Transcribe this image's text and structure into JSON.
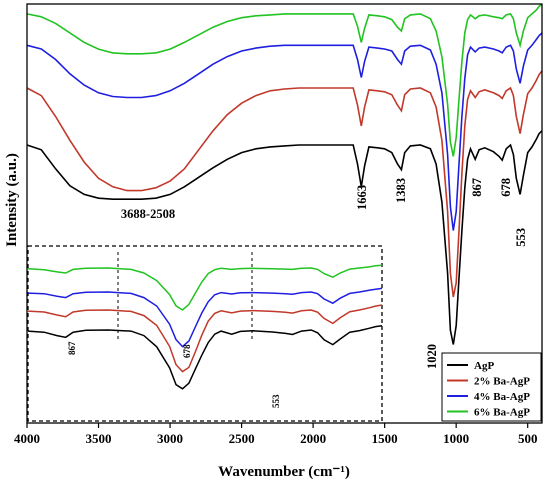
{
  "chart_data": {
    "type": "line",
    "title": "",
    "xlabel": "Wavenumber (cm⁻¹)",
    "ylabel": "Intensity (a.u.)",
    "xlim": [
      4000,
      400
    ],
    "x_reversed": true,
    "y_ticks_shown": false,
    "xticks": [
      4000,
      3500,
      3000,
      2500,
      2000,
      1500,
      1000,
      500
    ],
    "legend": {
      "position": "bottom-right"
    },
    "series": [
      {
        "name": "AgP",
        "color": "#000000",
        "offset": 0.0,
        "points": [
          [
            4000,
            0.0
          ],
          [
            3900,
            -0.05
          ],
          [
            3800,
            -0.25
          ],
          [
            3700,
            -0.43
          ],
          [
            3600,
            -0.52
          ],
          [
            3500,
            -0.56
          ],
          [
            3400,
            -0.57
          ],
          [
            3300,
            -0.57
          ],
          [
            3200,
            -0.57
          ],
          [
            3100,
            -0.56
          ],
          [
            3000,
            -0.52
          ],
          [
            2900,
            -0.44
          ],
          [
            2800,
            -0.34
          ],
          [
            2700,
            -0.24
          ],
          [
            2600,
            -0.15
          ],
          [
            2500,
            -0.08
          ],
          [
            2400,
            -0.04
          ],
          [
            2300,
            -0.02
          ],
          [
            2200,
            -0.01
          ],
          [
            2100,
            0.0
          ],
          [
            2000,
            0.0
          ],
          [
            1900,
            0.0
          ],
          [
            1800,
            0.0
          ],
          [
            1720,
            0.0
          ],
          [
            1690,
            -0.2
          ],
          [
            1663,
            -0.44
          ],
          [
            1640,
            -0.22
          ],
          [
            1610,
            -0.02
          ],
          [
            1550,
            -0.03
          ],
          [
            1500,
            -0.04
          ],
          [
            1450,
            -0.08
          ],
          [
            1410,
            -0.2
          ],
          [
            1383,
            -0.26
          ],
          [
            1360,
            -0.08
          ],
          [
            1320,
            -0.01
          ],
          [
            1250,
            0.0
          ],
          [
            1180,
            -0.04
          ],
          [
            1140,
            -0.2
          ],
          [
            1100,
            -0.6
          ],
          [
            1060,
            -1.35
          ],
          [
            1040,
            -1.95
          ],
          [
            1020,
            -2.1
          ],
          [
            1000,
            -1.9
          ],
          [
            980,
            -1.4
          ],
          [
            960,
            -0.9
          ],
          [
            940,
            -0.45
          ],
          [
            920,
            -0.15
          ],
          [
            900,
            -0.04
          ],
          [
            867,
            -0.15
          ],
          [
            840,
            -0.05
          ],
          [
            800,
            -0.03
          ],
          [
            740,
            -0.07
          ],
          [
            700,
            -0.12
          ],
          [
            678,
            -0.16
          ],
          [
            650,
            -0.04
          ],
          [
            620,
            0.0
          ],
          [
            600,
            -0.1
          ],
          [
            580,
            -0.35
          ],
          [
            553,
            -0.52
          ],
          [
            530,
            -0.32
          ],
          [
            500,
            -0.08
          ],
          [
            470,
            -0.02
          ],
          [
            440,
            0.06
          ],
          [
            420,
            0.12
          ],
          [
            400,
            0.15
          ]
        ]
      },
      {
        "name": "2% Ba-AgP",
        "color": "#c0392b",
        "offset": 0.6,
        "points": [
          [
            4000,
            0.0
          ],
          [
            3900,
            -0.08
          ],
          [
            3800,
            -0.3
          ],
          [
            3700,
            -0.55
          ],
          [
            3600,
            -0.78
          ],
          [
            3500,
            -0.95
          ],
          [
            3400,
            -1.04
          ],
          [
            3300,
            -1.08
          ],
          [
            3200,
            -1.08
          ],
          [
            3100,
            -1.05
          ],
          [
            3000,
            -0.98
          ],
          [
            2900,
            -0.85
          ],
          [
            2800,
            -0.65
          ],
          [
            2700,
            -0.45
          ],
          [
            2600,
            -0.28
          ],
          [
            2500,
            -0.16
          ],
          [
            2400,
            -0.08
          ],
          [
            2300,
            -0.03
          ],
          [
            2200,
            -0.01
          ],
          [
            2100,
            0.0
          ],
          [
            2000,
            0.0
          ],
          [
            1900,
            0.0
          ],
          [
            1800,
            0.0
          ],
          [
            1720,
            0.0
          ],
          [
            1690,
            -0.18
          ],
          [
            1663,
            -0.4
          ],
          [
            1640,
            -0.2
          ],
          [
            1610,
            -0.02
          ],
          [
            1550,
            -0.03
          ],
          [
            1500,
            -0.04
          ],
          [
            1450,
            -0.07
          ],
          [
            1410,
            -0.18
          ],
          [
            1383,
            -0.24
          ],
          [
            1360,
            -0.07
          ],
          [
            1320,
            -0.01
          ],
          [
            1250,
            0.0
          ],
          [
            1180,
            -0.05
          ],
          [
            1140,
            -0.2
          ],
          [
            1100,
            -0.55
          ],
          [
            1060,
            -1.3
          ],
          [
            1040,
            -1.95
          ],
          [
            1020,
            -2.2
          ],
          [
            1000,
            -2.05
          ],
          [
            980,
            -1.5
          ],
          [
            960,
            -0.9
          ],
          [
            940,
            -0.4
          ],
          [
            920,
            -0.12
          ],
          [
            900,
            -0.03
          ],
          [
            867,
            -0.1
          ],
          [
            840,
            -0.04
          ],
          [
            800,
            -0.02
          ],
          [
            740,
            -0.05
          ],
          [
            700,
            -0.08
          ],
          [
            678,
            -0.11
          ],
          [
            650,
            -0.03
          ],
          [
            620,
            0.0
          ],
          [
            600,
            -0.08
          ],
          [
            580,
            -0.3
          ],
          [
            553,
            -0.48
          ],
          [
            530,
            -0.28
          ],
          [
            500,
            -0.06
          ],
          [
            470,
            0.0
          ],
          [
            440,
            0.08
          ],
          [
            420,
            0.14
          ],
          [
            400,
            0.18
          ]
        ]
      },
      {
        "name": "4% Ba-AgP",
        "color": "#1f1fe0",
        "offset": 1.05,
        "points": [
          [
            4000,
            0.0
          ],
          [
            3900,
            -0.04
          ],
          [
            3800,
            -0.15
          ],
          [
            3700,
            -0.3
          ],
          [
            3600,
            -0.42
          ],
          [
            3500,
            -0.5
          ],
          [
            3400,
            -0.54
          ],
          [
            3300,
            -0.55
          ],
          [
            3200,
            -0.55
          ],
          [
            3100,
            -0.53
          ],
          [
            3000,
            -0.48
          ],
          [
            2900,
            -0.4
          ],
          [
            2800,
            -0.3
          ],
          [
            2700,
            -0.2
          ],
          [
            2600,
            -0.12
          ],
          [
            2500,
            -0.06
          ],
          [
            2400,
            -0.03
          ],
          [
            2300,
            -0.01
          ],
          [
            2200,
            0.0
          ],
          [
            2100,
            0.0
          ],
          [
            2000,
            0.0
          ],
          [
            1900,
            0.0
          ],
          [
            1800,
            0.0
          ],
          [
            1720,
            0.0
          ],
          [
            1690,
            -0.15
          ],
          [
            1663,
            -0.34
          ],
          [
            1640,
            -0.17
          ],
          [
            1610,
            -0.02
          ],
          [
            1550,
            -0.03
          ],
          [
            1500,
            -0.04
          ],
          [
            1450,
            -0.06
          ],
          [
            1410,
            -0.15
          ],
          [
            1383,
            -0.2
          ],
          [
            1360,
            -0.06
          ],
          [
            1320,
            -0.01
          ],
          [
            1250,
            0.0
          ],
          [
            1180,
            -0.05
          ],
          [
            1140,
            -0.2
          ],
          [
            1100,
            -0.5
          ],
          [
            1060,
            -1.15
          ],
          [
            1040,
            -1.7
          ],
          [
            1020,
            -1.95
          ],
          [
            1000,
            -1.75
          ],
          [
            980,
            -1.25
          ],
          [
            960,
            -0.75
          ],
          [
            940,
            -0.35
          ],
          [
            920,
            -0.1
          ],
          [
            900,
            -0.02
          ],
          [
            867,
            -0.07
          ],
          [
            840,
            -0.03
          ],
          [
            800,
            -0.02
          ],
          [
            740,
            -0.04
          ],
          [
            700,
            -0.06
          ],
          [
            678,
            -0.08
          ],
          [
            650,
            -0.02
          ],
          [
            620,
            0.0
          ],
          [
            600,
            -0.06
          ],
          [
            580,
            -0.25
          ],
          [
            553,
            -0.4
          ],
          [
            530,
            -0.22
          ],
          [
            500,
            -0.05
          ],
          [
            470,
            0.0
          ],
          [
            440,
            0.06
          ],
          [
            420,
            0.1
          ],
          [
            400,
            0.13
          ]
        ]
      },
      {
        "name": "6% Ba-AgP",
        "color": "#22c322",
        "offset": 1.38,
        "points": [
          [
            4000,
            0.0
          ],
          [
            3900,
            -0.03
          ],
          [
            3800,
            -0.1
          ],
          [
            3700,
            -0.2
          ],
          [
            3600,
            -0.3
          ],
          [
            3500,
            -0.37
          ],
          [
            3400,
            -0.41
          ],
          [
            3300,
            -0.42
          ],
          [
            3200,
            -0.42
          ],
          [
            3100,
            -0.41
          ],
          [
            3000,
            -0.37
          ],
          [
            2900,
            -0.3
          ],
          [
            2800,
            -0.22
          ],
          [
            2700,
            -0.14
          ],
          [
            2600,
            -0.08
          ],
          [
            2500,
            -0.04
          ],
          [
            2400,
            -0.02
          ],
          [
            2300,
            -0.01
          ],
          [
            2200,
            0.0
          ],
          [
            2100,
            0.0
          ],
          [
            2000,
            0.0
          ],
          [
            1900,
            0.0
          ],
          [
            1800,
            0.0
          ],
          [
            1720,
            0.0
          ],
          [
            1690,
            -0.13
          ],
          [
            1663,
            -0.3
          ],
          [
            1640,
            -0.15
          ],
          [
            1610,
            -0.01
          ],
          [
            1550,
            -0.02
          ],
          [
            1500,
            -0.03
          ],
          [
            1450,
            -0.06
          ],
          [
            1410,
            -0.14
          ],
          [
            1383,
            -0.18
          ],
          [
            1360,
            -0.05
          ],
          [
            1320,
            -0.01
          ],
          [
            1250,
            0.0
          ],
          [
            1180,
            -0.05
          ],
          [
            1140,
            -0.18
          ],
          [
            1100,
            -0.45
          ],
          [
            1060,
            -0.95
          ],
          [
            1040,
            -1.35
          ],
          [
            1020,
            -1.5
          ],
          [
            1000,
            -1.3
          ],
          [
            980,
            -0.9
          ],
          [
            960,
            -0.5
          ],
          [
            940,
            -0.2
          ],
          [
            920,
            -0.06
          ],
          [
            900,
            -0.01
          ],
          [
            867,
            -0.05
          ],
          [
            840,
            -0.02
          ],
          [
            800,
            -0.01
          ],
          [
            740,
            -0.03
          ],
          [
            700,
            -0.04
          ],
          [
            678,
            -0.05
          ],
          [
            650,
            -0.01
          ],
          [
            620,
            0.0
          ],
          [
            600,
            -0.05
          ],
          [
            580,
            -0.2
          ],
          [
            553,
            -0.33
          ],
          [
            530,
            -0.18
          ],
          [
            500,
            -0.04
          ],
          [
            470,
            0.0
          ],
          [
            440,
            0.04
          ],
          [
            420,
            0.08
          ],
          [
            400,
            0.1
          ]
        ]
      }
    ],
    "annotations": [
      "3688-2508",
      "1663",
      "1383",
      "1020",
      "867",
      "678",
      "553"
    ],
    "inset": {
      "annotations": [
        "867",
        "678",
        "553"
      ]
    }
  }
}
